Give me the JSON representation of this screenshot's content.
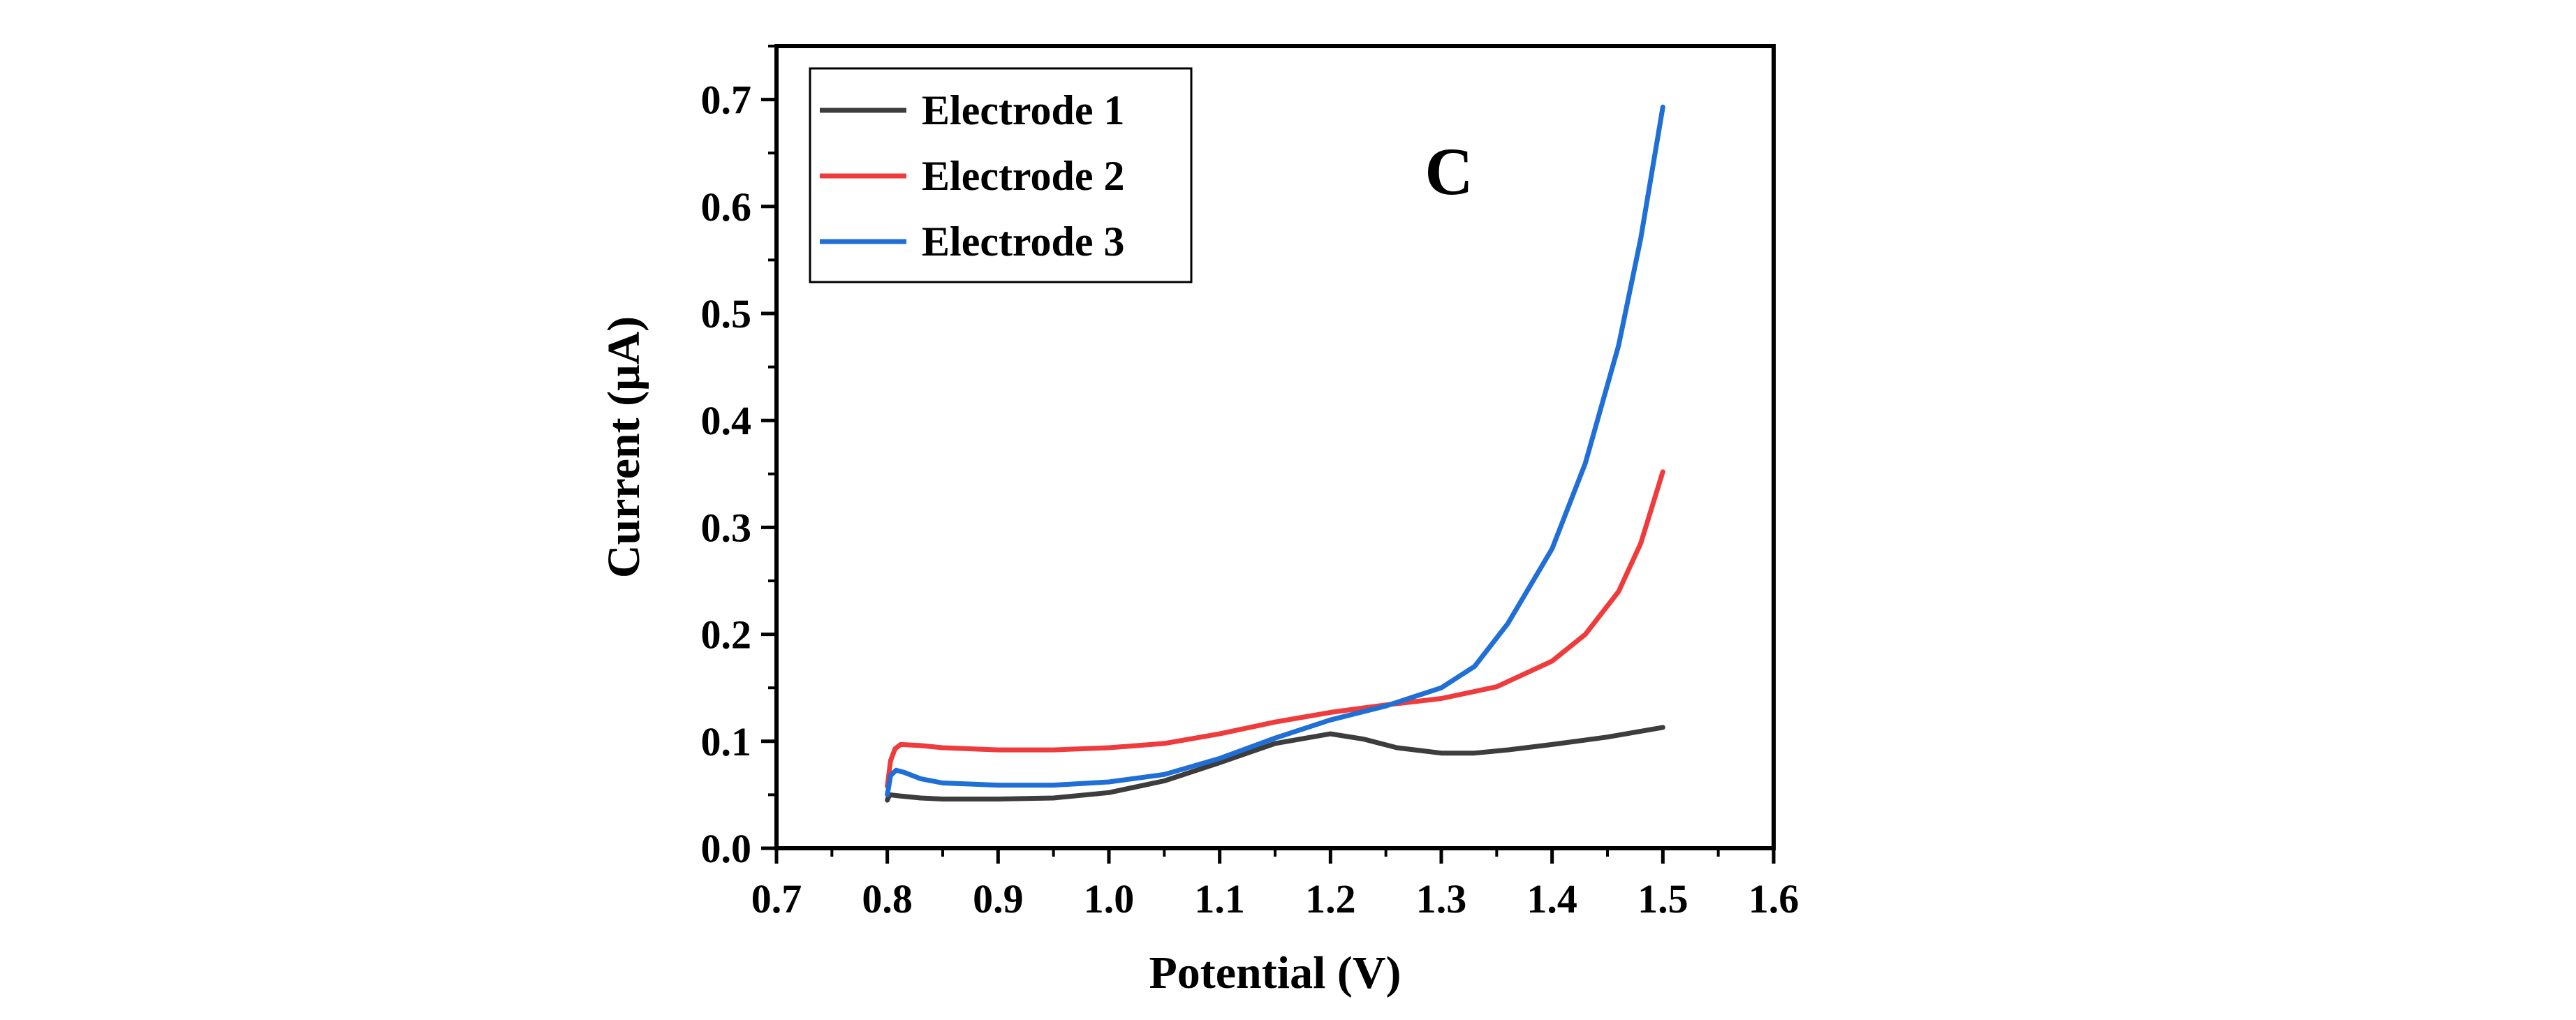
{
  "chart_data": {
    "type": "line",
    "panel_label": "C",
    "xlabel": "Potential (V)",
    "ylabel": "Current (μA)",
    "xlim": [
      0.7,
      1.6
    ],
    "ylim": [
      0.0,
      0.75
    ],
    "xticks": [
      "0.7",
      "0.8",
      "0.9",
      "1.0",
      "1.1",
      "1.2",
      "1.3",
      "1.4",
      "1.5",
      "1.6"
    ],
    "yticks": [
      "0.0",
      "0.1",
      "0.2",
      "0.3",
      "0.4",
      "0.5",
      "0.6",
      "0.7"
    ],
    "xtick_values": [
      0.7,
      0.8,
      0.9,
      1.0,
      1.1,
      1.2,
      1.3,
      1.4,
      1.5,
      1.6
    ],
    "ytick_values": [
      0.0,
      0.1,
      0.2,
      0.3,
      0.4,
      0.5,
      0.6,
      0.7
    ],
    "grid": false,
    "legend_position": "top-left",
    "series": [
      {
        "name": "Electrode 1",
        "color": "#3d3d3d",
        "points": [
          [
            0.8,
            0.045
          ],
          [
            0.802,
            0.05
          ],
          [
            0.81,
            0.049
          ],
          [
            0.83,
            0.047
          ],
          [
            0.85,
            0.046
          ],
          [
            0.9,
            0.046
          ],
          [
            0.95,
            0.047
          ],
          [
            1.0,
            0.052
          ],
          [
            1.05,
            0.063
          ],
          [
            1.1,
            0.08
          ],
          [
            1.15,
            0.098
          ],
          [
            1.2,
            0.107
          ],
          [
            1.23,
            0.102
          ],
          [
            1.26,
            0.094
          ],
          [
            1.3,
            0.089
          ],
          [
            1.33,
            0.089
          ],
          [
            1.36,
            0.092
          ],
          [
            1.4,
            0.097
          ],
          [
            1.45,
            0.104
          ],
          [
            1.5,
            0.113
          ]
        ]
      },
      {
        "name": "Electrode 2",
        "color": "#ef3b3b",
        "points": [
          [
            0.8,
            0.058
          ],
          [
            0.803,
            0.082
          ],
          [
            0.807,
            0.093
          ],
          [
            0.812,
            0.097
          ],
          [
            0.83,
            0.096
          ],
          [
            0.85,
            0.094
          ],
          [
            0.9,
            0.092
          ],
          [
            0.95,
            0.092
          ],
          [
            1.0,
            0.094
          ],
          [
            1.05,
            0.098
          ],
          [
            1.1,
            0.107
          ],
          [
            1.15,
            0.118
          ],
          [
            1.2,
            0.127
          ],
          [
            1.25,
            0.134
          ],
          [
            1.3,
            0.14
          ],
          [
            1.35,
            0.151
          ],
          [
            1.4,
            0.175
          ],
          [
            1.43,
            0.2
          ],
          [
            1.46,
            0.24
          ],
          [
            1.48,
            0.285
          ],
          [
            1.5,
            0.352
          ]
        ]
      },
      {
        "name": "Electrode 3",
        "color": "#1f6fd6",
        "points": [
          [
            0.8,
            0.05
          ],
          [
            0.803,
            0.068
          ],
          [
            0.808,
            0.073
          ],
          [
            0.815,
            0.071
          ],
          [
            0.83,
            0.065
          ],
          [
            0.85,
            0.061
          ],
          [
            0.9,
            0.059
          ],
          [
            0.95,
            0.059
          ],
          [
            1.0,
            0.062
          ],
          [
            1.05,
            0.069
          ],
          [
            1.1,
            0.084
          ],
          [
            1.15,
            0.103
          ],
          [
            1.2,
            0.12
          ],
          [
            1.25,
            0.133
          ],
          [
            1.3,
            0.15
          ],
          [
            1.33,
            0.17
          ],
          [
            1.36,
            0.21
          ],
          [
            1.4,
            0.28
          ],
          [
            1.43,
            0.36
          ],
          [
            1.46,
            0.47
          ],
          [
            1.48,
            0.57
          ],
          [
            1.5,
            0.693
          ]
        ]
      }
    ]
  }
}
